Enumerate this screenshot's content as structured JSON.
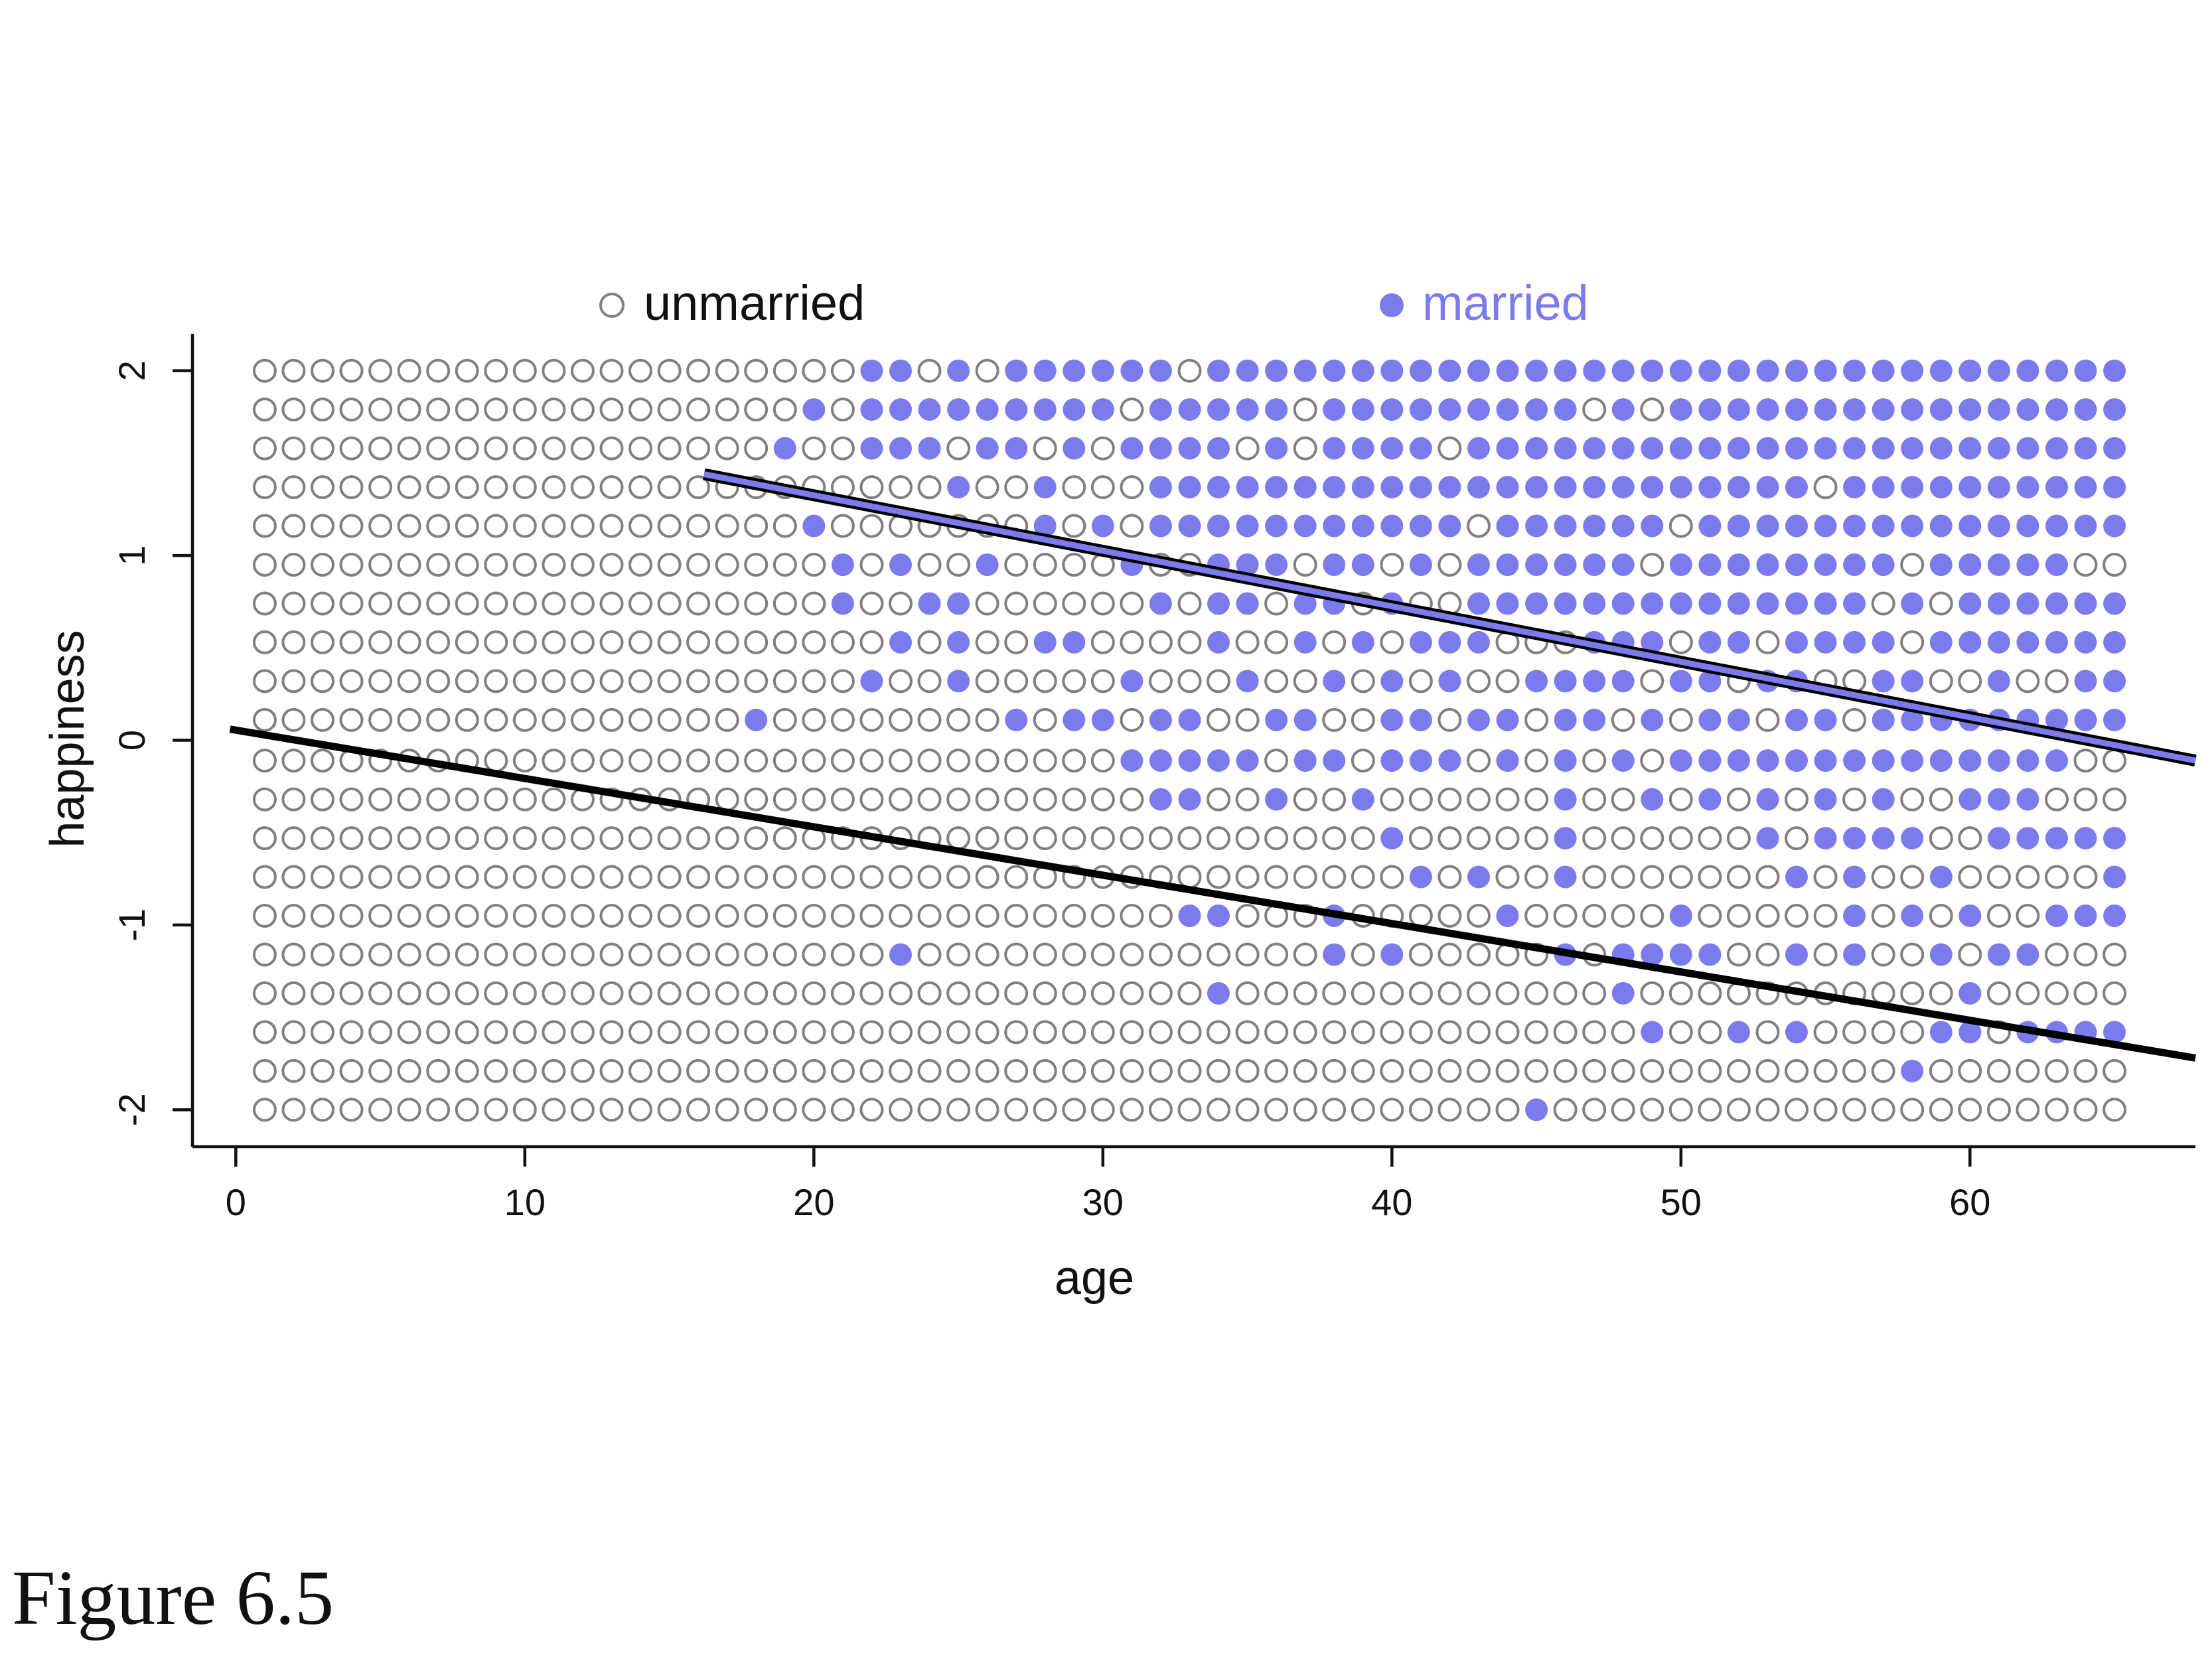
{
  "caption": "Figure 6.5",
  "chart_data": {
    "type": "scatter",
    "title": "",
    "xlabel": "age",
    "ylabel": "happiness",
    "xlim": [
      -1.5,
      67.8
    ],
    "ylim": [
      -2.2,
      2.2
    ],
    "xticks": [
      "0",
      "10",
      "20",
      "30",
      "40",
      "50",
      "60"
    ],
    "yticks": [
      "-2",
      "-1",
      "0",
      "1",
      "2"
    ],
    "grid": false,
    "legend": {
      "position": "top",
      "entries": [
        {
          "label": "unmarried",
          "marker": "open-circle",
          "color": "#808080"
        },
        {
          "label": "married",
          "marker": "filled-circle",
          "color": "#7b7bee"
        }
      ]
    },
    "grid_points": {
      "ages": [
        1,
        65
      ],
      "happiness": [
        -2,
        2
      ],
      "n_levels": 20,
      "note": ""
    },
    "married_by_happiness": [
      {
        "happiness": 2.0,
        "ages": [
          22,
          23,
          25,
          27,
          28,
          29,
          30,
          31,
          32,
          34,
          35,
          36,
          37,
          38,
          39,
          40,
          41,
          42,
          43,
          44,
          45,
          46,
          47,
          48,
          49,
          50,
          51,
          52,
          53,
          54,
          55,
          56,
          57,
          58,
          59,
          60,
          61,
          62,
          63,
          64,
          65
        ]
      },
      {
        "happiness": 1.79,
        "ages": [
          20,
          22,
          23,
          24,
          25,
          26,
          27,
          28,
          29,
          30,
          32,
          33,
          34,
          35,
          36,
          38,
          39,
          40,
          41,
          42,
          43,
          44,
          45,
          46,
          48,
          50,
          51,
          52,
          53,
          54,
          55,
          56,
          57,
          58,
          59,
          60,
          61,
          62,
          63,
          64,
          65
        ]
      },
      {
        "happiness": 1.58,
        "ages": [
          19,
          22,
          23,
          24,
          26,
          27,
          29,
          31,
          32,
          33,
          34,
          36,
          38,
          39,
          40,
          41,
          43,
          44,
          45,
          46,
          47,
          48,
          49,
          50,
          51,
          52,
          53,
          54,
          55,
          56,
          57,
          58,
          59,
          60,
          61,
          62,
          63,
          64,
          65
        ]
      },
      {
        "happiness": 1.37,
        "ages": [
          25,
          28,
          32,
          33,
          34,
          35,
          36,
          37,
          38,
          39,
          40,
          41,
          42,
          43,
          44,
          45,
          46,
          47,
          48,
          49,
          50,
          51,
          52,
          53,
          54,
          56,
          57,
          58,
          59,
          60,
          61,
          62,
          63,
          64,
          65
        ]
      },
      {
        "happiness": 1.16,
        "ages": [
          20,
          28,
          30,
          32,
          33,
          34,
          35,
          36,
          37,
          38,
          39,
          40,
          41,
          42,
          44,
          45,
          46,
          47,
          48,
          49,
          51,
          52,
          53,
          54,
          55,
          56,
          57,
          58,
          59,
          60,
          61,
          62,
          63,
          64,
          65
        ]
      },
      {
        "happiness": 0.95,
        "ages": [
          21,
          23,
          26,
          31,
          34,
          35,
          36,
          38,
          39,
          41,
          43,
          44,
          45,
          46,
          47,
          48,
          50,
          51,
          52,
          53,
          54,
          55,
          56,
          57,
          59,
          60,
          61,
          62,
          63
        ]
      },
      {
        "happiness": 0.74,
        "ages": [
          21,
          24,
          25,
          32,
          34,
          35,
          37,
          38,
          40,
          43,
          44,
          45,
          46,
          47,
          48,
          49,
          50,
          51,
          52,
          53,
          54,
          55,
          56,
          58,
          60,
          61,
          62,
          63,
          64,
          65
        ]
      },
      {
        "happiness": 0.53,
        "ages": [
          23,
          25,
          28,
          29,
          34,
          37,
          39,
          41,
          42,
          43,
          47,
          48,
          49,
          51,
          52,
          54,
          55,
          56,
          57,
          59,
          60,
          61,
          62,
          63,
          64,
          65
        ]
      },
      {
        "happiness": 0.32,
        "ages": [
          22,
          25,
          31,
          35,
          38,
          40,
          42,
          45,
          46,
          47,
          48,
          50,
          51,
          53,
          54,
          57,
          58,
          61,
          64,
          65
        ]
      },
      {
        "happiness": 0.11,
        "ages": [
          18,
          27,
          29,
          30,
          32,
          33,
          36,
          37,
          40,
          41,
          43,
          44,
          46,
          47,
          49,
          51,
          52,
          54,
          55,
          57,
          58,
          59,
          60,
          61,
          62,
          63,
          64,
          65
        ]
      },
      {
        "happiness": -0.11,
        "ages": [
          31,
          32,
          33,
          34,
          35,
          37,
          38,
          40,
          41,
          42,
          44,
          46,
          48,
          50,
          51,
          52,
          53,
          54,
          55,
          56,
          57,
          58,
          59,
          60,
          61,
          62,
          63
        ]
      },
      {
        "happiness": -0.32,
        "ages": [
          32,
          33,
          36,
          39,
          46,
          49,
          51,
          53,
          55,
          57,
          60,
          61,
          62
        ]
      },
      {
        "happiness": -0.53,
        "ages": [
          40,
          46,
          53,
          55,
          56,
          57,
          58,
          61,
          62,
          63,
          64,
          65
        ]
      },
      {
        "happiness": -0.74,
        "ages": [
          41,
          43,
          46,
          54,
          56,
          59,
          65
        ]
      },
      {
        "happiness": -0.95,
        "ages": [
          33,
          34,
          38,
          44,
          50,
          56,
          58,
          60,
          63,
          64,
          65
        ]
      },
      {
        "happiness": -1.16,
        "ages": [
          23,
          38,
          40,
          46,
          48,
          49,
          50,
          51,
          54,
          56,
          59,
          61,
          62
        ]
      },
      {
        "happiness": -1.37,
        "ages": [
          34,
          48,
          60
        ]
      },
      {
        "happiness": -1.58,
        "ages": [
          49,
          52,
          54,
          59,
          60,
          62,
          63,
          64,
          65
        ]
      },
      {
        "happiness": -1.79,
        "ages": [
          58
        ]
      },
      {
        "happiness": -2.0,
        "ages": [
          45
        ]
      }
    ],
    "regression_lines": [
      {
        "group": "married",
        "color": "#7b7bee",
        "x": [
          16.2,
          67.8
        ],
        "y": [
          1.44,
          -0.11
        ]
      },
      {
        "group": "unmarried",
        "color": "#000000",
        "x": [
          -0.2,
          67.8
        ],
        "y": [
          0.06,
          -1.72
        ]
      }
    ]
  }
}
